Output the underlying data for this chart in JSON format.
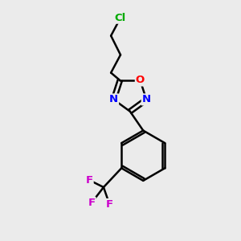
{
  "background_color": "#ebebeb",
  "bond_color": "#000000",
  "bond_width": 1.8,
  "atom_colors": {
    "Cl": "#00aa00",
    "O": "#ff0000",
    "N": "#0000ff",
    "F": "#cc00cc",
    "C": "#000000"
  },
  "fig_width": 3.0,
  "fig_height": 3.0,
  "dpi": 100
}
